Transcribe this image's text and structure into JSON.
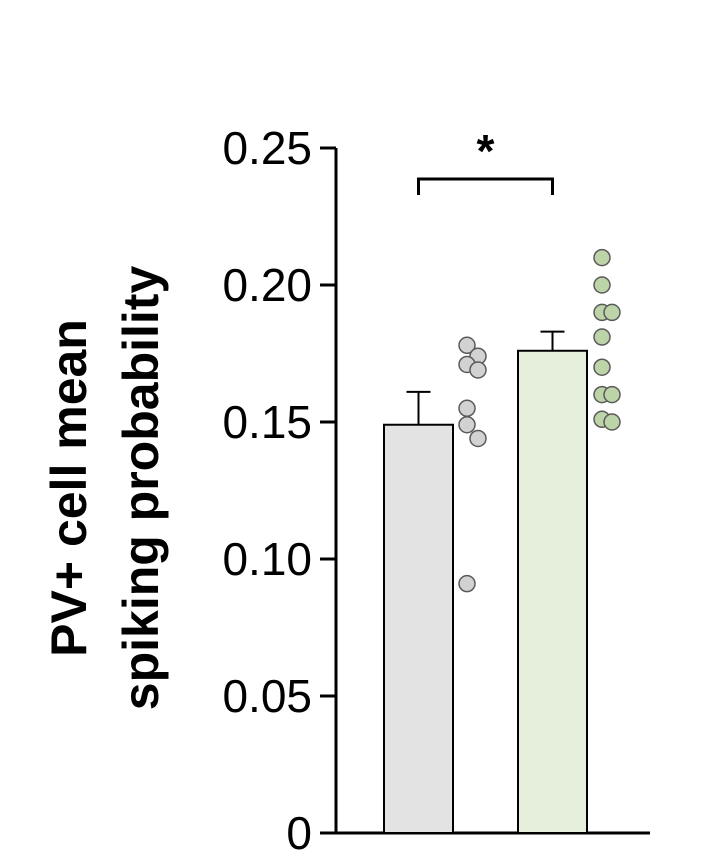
{
  "chart_data": {
    "type": "bar",
    "title": "",
    "xlabel": "",
    "ylabel_lines": [
      "PV+ cell mean",
      "spiking probability"
    ],
    "ylim": [
      0,
      0.25
    ],
    "yticks": [
      0,
      0.05,
      0.1,
      0.15,
      0.2,
      0.25
    ],
    "ytick_labels": [
      "0",
      "0.05",
      "0.10",
      "0.15",
      "0.20",
      "0.25"
    ],
    "grid": false,
    "legend": "none",
    "categories": [
      "",
      ""
    ],
    "series": [
      {
        "values": [
          0.149,
          0.176
        ],
        "errors": [
          0.012,
          0.007
        ],
        "colors": [
          "#e3e3e3",
          "#e5efdb"
        ]
      }
    ],
    "points": [
      {
        "category_index": 0,
        "color": "#d2d2d2",
        "values": [
          0.178,
          0.174,
          0.171,
          0.169,
          0.155,
          0.149,
          0.144,
          0.091
        ]
      },
      {
        "category_index": 1,
        "color": "#bdd3a8",
        "values": [
          0.21,
          0.2,
          0.19,
          0.19,
          0.181,
          0.17,
          0.16,
          0.16,
          0.151,
          0.15
        ]
      }
    ],
    "annotations": [
      {
        "type": "significance",
        "between": [
          0,
          1
        ],
        "text": "*"
      }
    ]
  }
}
